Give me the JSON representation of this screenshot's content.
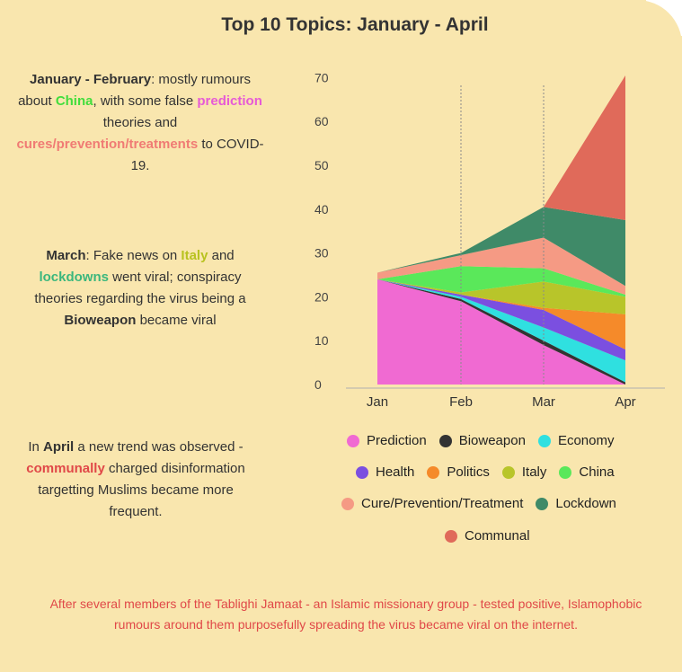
{
  "title": "Top 10 Topics: January - April",
  "notes": {
    "jan_feb": {
      "p1_bold": "January - February",
      "p1_a": ": mostly rumours about ",
      "china": "China",
      "p1_b": ", with some false ",
      "prediction": "prediction",
      "p1_c": " theories and ",
      "cures": "cures/prevention/treatments",
      "p1_d": " to COVID-19."
    },
    "march": {
      "bold": "March",
      "a": ": Fake news on ",
      "italy": "Italy",
      "b": " and ",
      "lockdowns": "lockdowns",
      "c": " went viral; conspiracy theories regarding the virus being a ",
      "bioweapon": "Bioweapon",
      "d": " became viral"
    },
    "april": {
      "a": "In ",
      "bold": "April",
      "b": " a new trend was observed - ",
      "communally": "communally",
      "c": " charged disinformation targetting Muslims became more frequent."
    }
  },
  "bottom_note": "After several members of the Tablighi Jamaat - an Islamic missionary group - tested positive, Islamophobic rumours around them purposefully spreading the virus became viral on the internet.",
  "chart_data": {
    "type": "area",
    "categories": [
      "Jan",
      "Feb",
      "Mar",
      "Apr"
    ],
    "ylim": [
      0,
      70
    ],
    "yticks": [
      0,
      10,
      20,
      30,
      40,
      50,
      60,
      70
    ],
    "series": [
      {
        "name": "Prediction",
        "color": "#f06ad2",
        "values": [
          24,
          19,
          9,
          0
        ]
      },
      {
        "name": "Bioweapon",
        "color": "#333333",
        "values": [
          0,
          0.5,
          1,
          0.5
        ]
      },
      {
        "name": "Economy",
        "color": "#2fe0e0",
        "values": [
          0,
          0.5,
          3,
          5
        ]
      },
      {
        "name": "Health",
        "color": "#7b4fe0",
        "values": [
          0,
          0.5,
          4,
          2.5
        ]
      },
      {
        "name": "Politics",
        "color": "#f58a2a",
        "values": [
          0,
          0,
          0.5,
          8
        ]
      },
      {
        "name": "Italy",
        "color": "#b8c52a",
        "values": [
          0,
          0.5,
          6,
          4
        ]
      },
      {
        "name": "China",
        "color": "#5ae85a",
        "values": [
          0,
          6,
          3,
          0.5
        ]
      },
      {
        "name": "Cure/Prevention/Treatment",
        "color": "#f59a84",
        "values": [
          1.5,
          2.5,
          7,
          2
        ]
      },
      {
        "name": "Lockdown",
        "color": "#3f8a68",
        "values": [
          0,
          0.5,
          7,
          15
        ]
      },
      {
        "name": "Communal",
        "color": "#e06a5a",
        "values": [
          0,
          0,
          0,
          33
        ]
      }
    ]
  }
}
